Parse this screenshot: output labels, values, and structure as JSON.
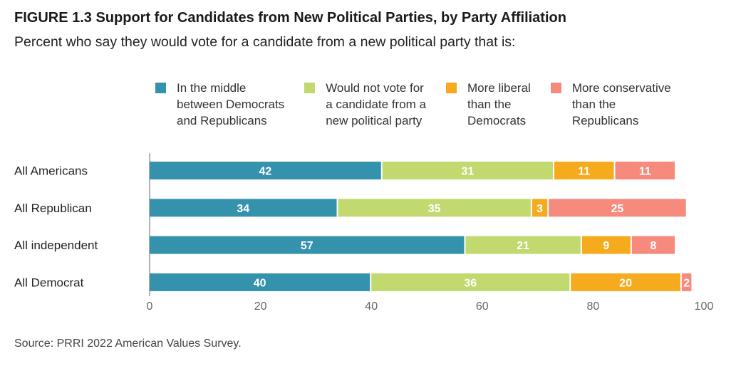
{
  "figure": {
    "title": "FIGURE 1.3  Support for Candidates from New Political Parties, by Party Affiliation",
    "subtitle": "Percent who say they would vote for a candidate from a new political party that is:",
    "source": "Source: PRRI 2022 American Values Survey."
  },
  "chart_data": {
    "type": "bar",
    "orientation": "horizontal",
    "stacked": true,
    "title": "FIGURE 1.3  Support for Candidates from New Political Parties, by Party Affiliation",
    "subtitle": "Percent who say they would vote for a candidate from a new political party that is:",
    "categories": [
      "All Americans",
      "All Republican",
      "All independent",
      "All Democrat"
    ],
    "series": [
      {
        "name": "In the middle\nbetween Democrats\nand Republicans",
        "color": "#3592ad",
        "values": [
          42,
          34,
          57,
          40
        ]
      },
      {
        "name": "Would not vote for\na candidate from a\nnew political party",
        "color": "#c2d96f",
        "values": [
          31,
          35,
          21,
          36
        ]
      },
      {
        "name": "More liberal\nthan the\nDemocrats",
        "color": "#f5ab1d",
        "values": [
          11,
          3,
          9,
          20
        ]
      },
      {
        "name": "More conservative\nthan the\nRepublicans",
        "color": "#f68b7d",
        "values": [
          11,
          25,
          8,
          2
        ]
      }
    ],
    "xlim": [
      0,
      100
    ],
    "xticks": [
      0,
      20,
      40,
      60,
      80,
      100
    ],
    "data_labels": true,
    "grid": false,
    "legend": "top"
  }
}
